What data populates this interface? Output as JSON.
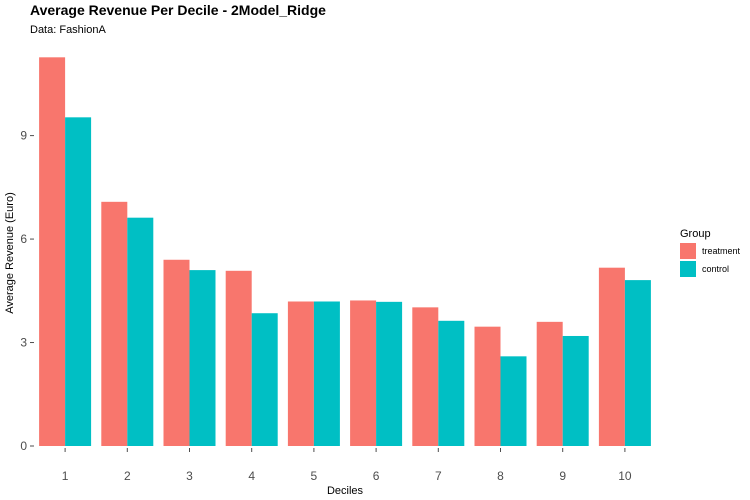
{
  "colors": {
    "treatment": "#F8766D",
    "control": "#00BFC4",
    "tick": "#4d4d4d"
  },
  "chart_data": {
    "type": "bar",
    "title": "Average Revenue Per Decile - 2Model_Ridge",
    "subtitle": "Data: FashionA",
    "xlabel": "Deciles",
    "ylabel": "Average Revenue (Euro)",
    "categories": [
      "1",
      "2",
      "3",
      "4",
      "5",
      "6",
      "7",
      "8",
      "9",
      "10"
    ],
    "series": [
      {
        "name": "treatment",
        "values": [
          11.27,
          7.08,
          5.4,
          5.08,
          4.19,
          4.22,
          4.02,
          3.46,
          3.6,
          5.17
        ]
      },
      {
        "name": "control",
        "values": [
          9.53,
          6.62,
          5.1,
          3.85,
          4.19,
          4.18,
          3.63,
          2.6,
          3.19,
          4.81
        ]
      }
    ],
    "yticks": [
      "0",
      "3",
      "6",
      "9"
    ],
    "ylim": [
      0,
      11.83
    ],
    "grid": false,
    "legend": {
      "title": "Group",
      "position": "right"
    }
  }
}
